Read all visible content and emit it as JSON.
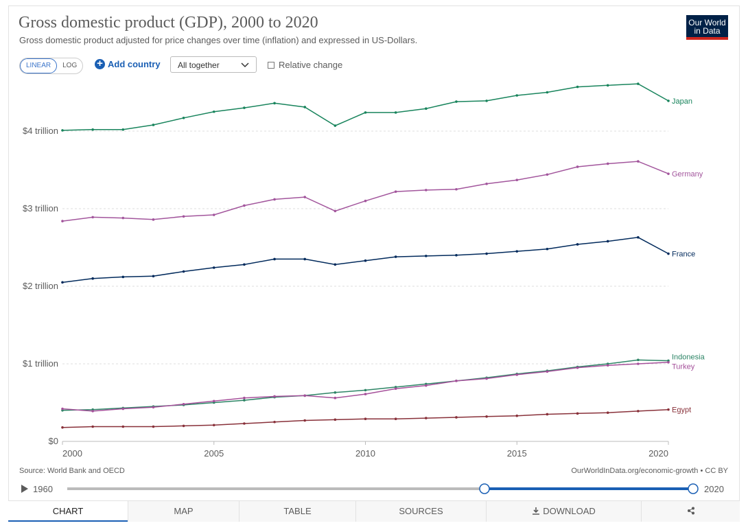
{
  "chart_data": {
    "type": "line",
    "title": "Gross domestic product (GDP), 2000 to 2020",
    "subtitle": "Gross domestic product adjusted for price changes over time (inflation) and expressed in US-Dollars.",
    "x": [
      2000,
      2001,
      2002,
      2003,
      2004,
      2005,
      2006,
      2007,
      2008,
      2009,
      2010,
      2011,
      2012,
      2013,
      2014,
      2015,
      2016,
      2017,
      2018,
      2019,
      2020
    ],
    "xlim": [
      2000,
      2020
    ],
    "xticks": [
      2000,
      2005,
      2010,
      2015,
      2020
    ],
    "ylim": [
      0,
      4.7
    ],
    "yticks": [
      {
        "value": 0,
        "label": "$0"
      },
      {
        "value": 1,
        "label": "$1 trillion"
      },
      {
        "value": 2,
        "label": "$2 trillion"
      },
      {
        "value": 3,
        "label": "$3 trillion"
      },
      {
        "value": 4,
        "label": "$4 trillion"
      }
    ],
    "grid": true,
    "series": [
      {
        "name": "Japan",
        "color": "#18845c",
        "values": [
          4.01,
          4.02,
          4.02,
          4.08,
          4.17,
          4.25,
          4.3,
          4.36,
          4.31,
          4.07,
          4.24,
          4.24,
          4.29,
          4.38,
          4.39,
          4.46,
          4.5,
          4.57,
          4.59,
          4.61,
          4.39
        ]
      },
      {
        "name": "Germany",
        "color": "#a2559c",
        "values": [
          2.84,
          2.89,
          2.88,
          2.86,
          2.9,
          2.92,
          3.04,
          3.12,
          3.15,
          2.97,
          3.1,
          3.22,
          3.24,
          3.25,
          3.32,
          3.37,
          3.44,
          3.54,
          3.58,
          3.61,
          3.45
        ]
      },
      {
        "name": "France",
        "color": "#00295b",
        "values": [
          2.05,
          2.1,
          2.12,
          2.13,
          2.19,
          2.24,
          2.28,
          2.35,
          2.35,
          2.28,
          2.33,
          2.38,
          2.39,
          2.4,
          2.42,
          2.45,
          2.48,
          2.54,
          2.58,
          2.63,
          2.42
        ]
      },
      {
        "name": "Indonesia",
        "color": "#2c8465",
        "values": [
          0.4,
          0.41,
          0.43,
          0.45,
          0.47,
          0.5,
          0.53,
          0.57,
          0.59,
          0.63,
          0.66,
          0.7,
          0.74,
          0.78,
          0.82,
          0.87,
          0.91,
          0.96,
          1.0,
          1.05,
          1.04
        ]
      },
      {
        "name": "Turkey",
        "color": "#a5509a",
        "values": [
          0.42,
          0.39,
          0.42,
          0.44,
          0.48,
          0.52,
          0.56,
          0.58,
          0.59,
          0.56,
          0.61,
          0.68,
          0.72,
          0.78,
          0.81,
          0.86,
          0.9,
          0.95,
          0.98,
          1.0,
          1.02
        ]
      },
      {
        "name": "Egypt",
        "color": "#883039",
        "values": [
          0.18,
          0.19,
          0.19,
          0.19,
          0.2,
          0.21,
          0.23,
          0.25,
          0.27,
          0.28,
          0.29,
          0.29,
          0.3,
          0.31,
          0.32,
          0.33,
          0.35,
          0.36,
          0.37,
          0.39,
          0.41
        ]
      }
    ]
  },
  "logo": "Our World in Data",
  "controls": {
    "linear": "LINEAR",
    "log": "LOG",
    "add_country": "Add country",
    "select": "All together",
    "relative": "Relative change"
  },
  "footer": {
    "source": "Source: World Bank and OECD",
    "url": "OurWorldInData.org/economic-growth • CC BY"
  },
  "timeline": {
    "start": 1960,
    "end": 2020
  },
  "tabs": [
    "CHART",
    "MAP",
    "TABLE",
    "SOURCES",
    "DOWNLOAD"
  ]
}
